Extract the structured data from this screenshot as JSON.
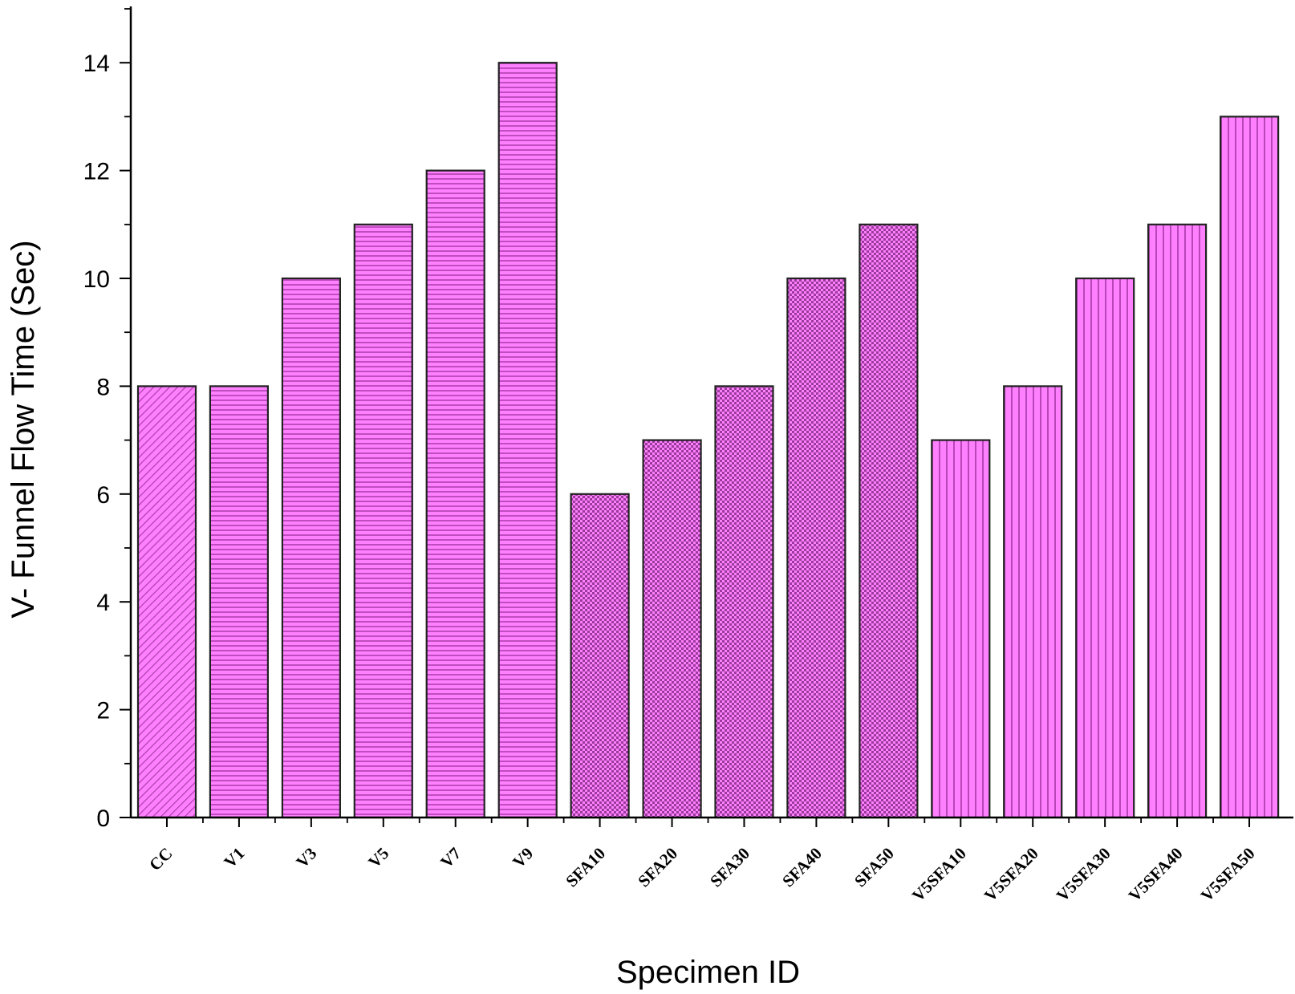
{
  "chart_data": {
    "type": "bar",
    "title": "",
    "xlabel": "Specimen ID",
    "ylabel": "V- Funnel Flow Time (Sec)",
    "ylim": [
      0,
      15
    ],
    "yticks": [
      0,
      2,
      4,
      6,
      8,
      10,
      12,
      14
    ],
    "categories": [
      "CC",
      "V1",
      "V3",
      "V5",
      "V7",
      "V9",
      "SFA10",
      "SFA20",
      "SFA30",
      "SFA40",
      "SFA50",
      "V5SFA10",
      "V5SFA20",
      "V5SFA30",
      "V5SFA40",
      "V5SFA50"
    ],
    "values": [
      8,
      8,
      10,
      11,
      12,
      14,
      6,
      7,
      8,
      10,
      11,
      7,
      8,
      10,
      11,
      13
    ],
    "patterns": [
      "diagonal",
      "horizontal",
      "horizontal",
      "horizontal",
      "horizontal",
      "horizontal",
      "checker",
      "checker",
      "checker",
      "checker",
      "checker",
      "vertical",
      "vertical",
      "vertical",
      "vertical",
      "vertical"
    ],
    "bar_color": "#ff80ff",
    "pattern_color": "#b040b0",
    "grid": false,
    "legend": "none"
  }
}
